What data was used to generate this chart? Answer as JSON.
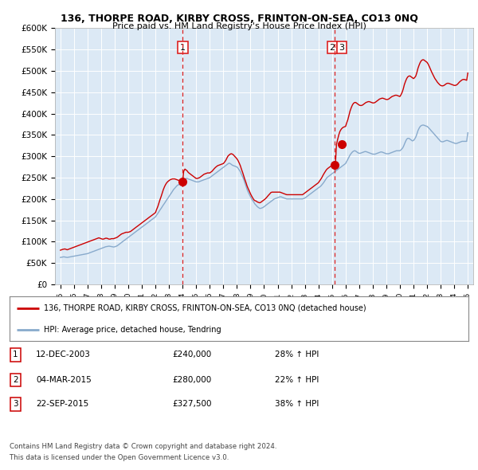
{
  "title1": "136, THORPE ROAD, KIRBY CROSS, FRINTON-ON-SEA, CO13 0NQ",
  "title2": "Price paid vs. HM Land Registry's House Price Index (HPI)",
  "legend_line1": "136, THORPE ROAD, KIRBY CROSS, FRINTON-ON-SEA, CO13 0NQ (detached house)",
  "legend_line2": "HPI: Average price, detached house, Tendring",
  "footer1": "Contains HM Land Registry data © Crown copyright and database right 2024.",
  "footer2": "This data is licensed under the Open Government Licence v3.0.",
  "table": [
    {
      "num": "1",
      "date": "12-DEC-2003",
      "price": "£240,000",
      "hpi": "28% ↑ HPI"
    },
    {
      "num": "2",
      "date": "04-MAR-2015",
      "price": "£280,000",
      "hpi": "22% ↑ HPI"
    },
    {
      "num": "3",
      "date": "22-SEP-2015",
      "price": "£327,500",
      "hpi": "38% ↑ HPI"
    }
  ],
  "vline1_x": 2004.0,
  "vline2_x": 2015.17,
  "sale1_x": 2004.0,
  "sale1_y": 240000,
  "sale2_x": 2015.17,
  "sale2_y": 280000,
  "sale3_x": 2015.72,
  "sale3_y": 327500,
  "ylim": [
    0,
    600000
  ],
  "xlim_left": 1994.6,
  "xlim_right": 2025.4,
  "bg_color": "#dce9f5",
  "red_color": "#cc0000",
  "blue_color": "#88aacc",
  "vline_color": "#dd2222",
  "hpi_x": [
    1995.0,
    1995.08,
    1995.17,
    1995.25,
    1995.33,
    1995.42,
    1995.5,
    1995.58,
    1995.67,
    1995.75,
    1995.83,
    1995.92,
    1996.0,
    1996.08,
    1996.17,
    1996.25,
    1996.33,
    1996.42,
    1996.5,
    1996.58,
    1996.67,
    1996.75,
    1996.83,
    1996.92,
    1997.0,
    1997.08,
    1997.17,
    1997.25,
    1997.33,
    1997.42,
    1997.5,
    1997.58,
    1997.67,
    1997.75,
    1997.83,
    1997.92,
    1998.0,
    1998.08,
    1998.17,
    1998.25,
    1998.33,
    1998.42,
    1998.5,
    1998.58,
    1998.67,
    1998.75,
    1998.83,
    1998.92,
    1999.0,
    1999.08,
    1999.17,
    1999.25,
    1999.33,
    1999.42,
    1999.5,
    1999.58,
    1999.67,
    1999.75,
    1999.83,
    1999.92,
    2000.0,
    2000.08,
    2000.17,
    2000.25,
    2000.33,
    2000.42,
    2000.5,
    2000.58,
    2000.67,
    2000.75,
    2000.83,
    2000.92,
    2001.0,
    2001.08,
    2001.17,
    2001.25,
    2001.33,
    2001.42,
    2001.5,
    2001.58,
    2001.67,
    2001.75,
    2001.83,
    2001.92,
    2002.0,
    2002.08,
    2002.17,
    2002.25,
    2002.33,
    2002.42,
    2002.5,
    2002.58,
    2002.67,
    2002.75,
    2002.83,
    2002.92,
    2003.0,
    2003.08,
    2003.17,
    2003.25,
    2003.33,
    2003.42,
    2003.5,
    2003.58,
    2003.67,
    2003.75,
    2003.83,
    2003.92,
    2004.0,
    2004.08,
    2004.17,
    2004.25,
    2004.33,
    2004.42,
    2004.5,
    2004.58,
    2004.67,
    2004.75,
    2004.83,
    2004.92,
    2005.0,
    2005.08,
    2005.17,
    2005.25,
    2005.33,
    2005.42,
    2005.5,
    2005.58,
    2005.67,
    2005.75,
    2005.83,
    2005.92,
    2006.0,
    2006.08,
    2006.17,
    2006.25,
    2006.33,
    2006.42,
    2006.5,
    2006.58,
    2006.67,
    2006.75,
    2006.83,
    2006.92,
    2007.0,
    2007.08,
    2007.17,
    2007.25,
    2007.33,
    2007.42,
    2007.5,
    2007.58,
    2007.67,
    2007.75,
    2007.83,
    2007.92,
    2008.0,
    2008.08,
    2008.17,
    2008.25,
    2008.33,
    2008.42,
    2008.5,
    2008.58,
    2008.67,
    2008.75,
    2008.83,
    2008.92,
    2009.0,
    2009.08,
    2009.17,
    2009.25,
    2009.33,
    2009.42,
    2009.5,
    2009.58,
    2009.67,
    2009.75,
    2009.83,
    2009.92,
    2010.0,
    2010.08,
    2010.17,
    2010.25,
    2010.33,
    2010.42,
    2010.5,
    2010.58,
    2010.67,
    2010.75,
    2010.83,
    2010.92,
    2011.0,
    2011.08,
    2011.17,
    2011.25,
    2011.33,
    2011.42,
    2011.5,
    2011.58,
    2011.67,
    2011.75,
    2011.83,
    2011.92,
    2012.0,
    2012.08,
    2012.17,
    2012.25,
    2012.33,
    2012.42,
    2012.5,
    2012.58,
    2012.67,
    2012.75,
    2012.83,
    2012.92,
    2013.0,
    2013.08,
    2013.17,
    2013.25,
    2013.33,
    2013.42,
    2013.5,
    2013.58,
    2013.67,
    2013.75,
    2013.83,
    2013.92,
    2014.0,
    2014.08,
    2014.17,
    2014.25,
    2014.33,
    2014.42,
    2014.5,
    2014.58,
    2014.67,
    2014.75,
    2014.83,
    2014.92,
    2015.0,
    2015.08,
    2015.17,
    2015.25,
    2015.33,
    2015.42,
    2015.5,
    2015.58,
    2015.67,
    2015.75,
    2015.83,
    2015.92,
    2016.0,
    2016.08,
    2016.17,
    2016.25,
    2016.33,
    2016.42,
    2016.5,
    2016.58,
    2016.67,
    2016.75,
    2016.83,
    2016.92,
    2017.0,
    2017.08,
    2017.17,
    2017.25,
    2017.33,
    2017.42,
    2017.5,
    2017.58,
    2017.67,
    2017.75,
    2017.83,
    2017.92,
    2018.0,
    2018.08,
    2018.17,
    2018.25,
    2018.33,
    2018.42,
    2018.5,
    2018.58,
    2018.67,
    2018.75,
    2018.83,
    2018.92,
    2019.0,
    2019.08,
    2019.17,
    2019.25,
    2019.33,
    2019.42,
    2019.5,
    2019.58,
    2019.67,
    2019.75,
    2019.83,
    2019.92,
    2020.0,
    2020.08,
    2020.17,
    2020.25,
    2020.33,
    2020.42,
    2020.5,
    2020.58,
    2020.67,
    2020.75,
    2020.83,
    2020.92,
    2021.0,
    2021.08,
    2021.17,
    2021.25,
    2021.33,
    2021.42,
    2021.5,
    2021.58,
    2021.67,
    2021.75,
    2021.83,
    2021.92,
    2022.0,
    2022.08,
    2022.17,
    2022.25,
    2022.33,
    2022.42,
    2022.5,
    2022.58,
    2022.67,
    2022.75,
    2022.83,
    2022.92,
    2023.0,
    2023.08,
    2023.17,
    2023.25,
    2023.33,
    2023.42,
    2023.5,
    2023.58,
    2023.67,
    2023.75,
    2023.83,
    2023.92,
    2024.0,
    2024.08,
    2024.17,
    2024.25,
    2024.33,
    2024.42,
    2024.5,
    2024.58,
    2024.67,
    2024.75,
    2024.83,
    2024.92,
    2025.0
  ],
  "hpi_y": [
    63000,
    63500,
    64000,
    64500,
    64000,
    63500,
    63000,
    63500,
    64000,
    64500,
    65000,
    65500,
    66000,
    66500,
    67000,
    67500,
    68000,
    68500,
    69000,
    69500,
    70000,
    70500,
    71000,
    71500,
    72000,
    73000,
    74000,
    75000,
    76000,
    77000,
    78000,
    79000,
    80000,
    81000,
    82000,
    83000,
    84000,
    85000,
    86000,
    87000,
    88000,
    88500,
    89000,
    89500,
    89000,
    88500,
    88000,
    87500,
    88000,
    89000,
    90000,
    92000,
    94000,
    96000,
    98000,
    100000,
    102000,
    104000,
    106000,
    108000,
    110000,
    112000,
    114000,
    116000,
    118000,
    120000,
    122000,
    124000,
    126000,
    128000,
    130000,
    132000,
    134000,
    136000,
    138000,
    140000,
    142000,
    144000,
    146000,
    148000,
    150000,
    152000,
    154000,
    156000,
    158000,
    162000,
    166000,
    170000,
    174000,
    178000,
    182000,
    186000,
    190000,
    194000,
    198000,
    202000,
    206000,
    210000,
    214000,
    218000,
    222000,
    225000,
    228000,
    231000,
    233000,
    234000,
    235000,
    236000,
    238000,
    242000,
    246000,
    248000,
    248000,
    247000,
    246000,
    245000,
    244000,
    243000,
    242000,
    241000,
    240000,
    240000,
    240000,
    241000,
    242000,
    243000,
    244000,
    245000,
    246000,
    247000,
    248000,
    249000,
    250000,
    252000,
    254000,
    256000,
    258000,
    260000,
    262000,
    264000,
    266000,
    268000,
    270000,
    272000,
    274000,
    276000,
    278000,
    280000,
    282000,
    284000,
    283000,
    281000,
    279000,
    278000,
    277000,
    276000,
    275000,
    272000,
    268000,
    264000,
    258000,
    252000,
    246000,
    238000,
    230000,
    222000,
    216000,
    210000,
    205000,
    200000,
    196000,
    192000,
    188000,
    185000,
    182000,
    180000,
    178000,
    178000,
    179000,
    180000,
    182000,
    184000,
    186000,
    188000,
    190000,
    192000,
    194000,
    196000,
    198000,
    200000,
    201000,
    202000,
    203000,
    204000,
    205000,
    205000,
    204000,
    203000,
    202000,
    201000,
    200000,
    200000,
    200000,
    200000,
    200000,
    200000,
    200000,
    200000,
    200000,
    200000,
    200000,
    200000,
    200000,
    200000,
    200000,
    201000,
    202000,
    204000,
    206000,
    208000,
    210000,
    212000,
    214000,
    216000,
    218000,
    220000,
    222000,
    224000,
    226000,
    228000,
    230000,
    233000,
    236000,
    240000,
    244000,
    248000,
    251000,
    253000,
    255000,
    257000,
    259000,
    261000,
    263000,
    265000,
    267000,
    269000,
    271000,
    273000,
    275000,
    277000,
    279000,
    281000,
    283000,
    288000,
    293000,
    298000,
    303000,
    307000,
    310000,
    312000,
    313000,
    312000,
    310000,
    308000,
    307000,
    307000,
    308000,
    309000,
    310000,
    311000,
    311000,
    310000,
    309000,
    308000,
    307000,
    306000,
    305000,
    305000,
    305000,
    306000,
    307000,
    308000,
    309000,
    310000,
    310000,
    309000,
    308000,
    307000,
    306000,
    306000,
    306000,
    307000,
    308000,
    309000,
    310000,
    311000,
    312000,
    313000,
    313000,
    313000,
    313000,
    315000,
    318000,
    322000,
    328000,
    335000,
    340000,
    342000,
    342000,
    340000,
    338000,
    336000,
    337000,
    340000,
    345000,
    352000,
    360000,
    366000,
    370000,
    372000,
    373000,
    373000,
    372000,
    371000,
    370000,
    368000,
    365000,
    362000,
    359000,
    356000,
    353000,
    350000,
    347000,
    344000,
    341000,
    338000,
    335000,
    334000,
    334000,
    335000,
    336000,
    337000,
    337000,
    336000,
    335000,
    334000,
    333000,
    332000,
    331000,
    330000,
    330000,
    331000,
    332000,
    333000,
    334000,
    335000,
    335000,
    335000,
    335000,
    335000,
    355000
  ],
  "red_x": [
    1995.0,
    1995.08,
    1995.17,
    1995.25,
    1995.33,
    1995.42,
    1995.5,
    1995.58,
    1995.67,
    1995.75,
    1995.83,
    1995.92,
    1996.0,
    1996.08,
    1996.17,
    1996.25,
    1996.33,
    1996.42,
    1996.5,
    1996.58,
    1996.67,
    1996.75,
    1996.83,
    1996.92,
    1997.0,
    1997.08,
    1997.17,
    1997.25,
    1997.33,
    1997.42,
    1997.5,
    1997.58,
    1997.67,
    1997.75,
    1997.83,
    1997.92,
    1998.0,
    1998.08,
    1998.17,
    1998.25,
    1998.33,
    1998.42,
    1998.5,
    1998.58,
    1998.67,
    1998.75,
    1998.83,
    1998.92,
    1999.0,
    1999.08,
    1999.17,
    1999.25,
    1999.33,
    1999.42,
    1999.5,
    1999.58,
    1999.67,
    1999.75,
    1999.83,
    1999.92,
    2000.0,
    2000.08,
    2000.17,
    2000.25,
    2000.33,
    2000.42,
    2000.5,
    2000.58,
    2000.67,
    2000.75,
    2000.83,
    2000.92,
    2001.0,
    2001.08,
    2001.17,
    2001.25,
    2001.33,
    2001.42,
    2001.5,
    2001.58,
    2001.67,
    2001.75,
    2001.83,
    2001.92,
    2002.0,
    2002.08,
    2002.17,
    2002.25,
    2002.33,
    2002.42,
    2002.5,
    2002.58,
    2002.67,
    2002.75,
    2002.83,
    2002.92,
    2003.0,
    2003.08,
    2003.17,
    2003.25,
    2003.33,
    2003.42,
    2003.5,
    2003.58,
    2003.67,
    2003.75,
    2003.83,
    2003.92,
    2004.0,
    2004.08,
    2004.17,
    2004.25,
    2004.33,
    2004.42,
    2004.5,
    2004.58,
    2004.67,
    2004.75,
    2004.83,
    2004.92,
    2005.0,
    2005.08,
    2005.17,
    2005.25,
    2005.33,
    2005.42,
    2005.5,
    2005.58,
    2005.67,
    2005.75,
    2005.83,
    2005.92,
    2006.0,
    2006.08,
    2006.17,
    2006.25,
    2006.33,
    2006.42,
    2006.5,
    2006.58,
    2006.67,
    2006.75,
    2006.83,
    2006.92,
    2007.0,
    2007.08,
    2007.17,
    2007.25,
    2007.33,
    2007.42,
    2007.5,
    2007.58,
    2007.67,
    2007.75,
    2007.83,
    2007.92,
    2008.0,
    2008.08,
    2008.17,
    2008.25,
    2008.33,
    2008.42,
    2008.5,
    2008.58,
    2008.67,
    2008.75,
    2008.83,
    2008.92,
    2009.0,
    2009.08,
    2009.17,
    2009.25,
    2009.33,
    2009.42,
    2009.5,
    2009.58,
    2009.67,
    2009.75,
    2009.83,
    2009.92,
    2010.0,
    2010.08,
    2010.17,
    2010.25,
    2010.33,
    2010.42,
    2010.5,
    2010.58,
    2010.67,
    2010.75,
    2010.83,
    2010.92,
    2011.0,
    2011.08,
    2011.17,
    2011.25,
    2011.33,
    2011.42,
    2011.5,
    2011.58,
    2011.67,
    2011.75,
    2011.83,
    2011.92,
    2012.0,
    2012.08,
    2012.17,
    2012.25,
    2012.33,
    2012.42,
    2012.5,
    2012.58,
    2012.67,
    2012.75,
    2012.83,
    2012.92,
    2013.0,
    2013.08,
    2013.17,
    2013.25,
    2013.33,
    2013.42,
    2013.5,
    2013.58,
    2013.67,
    2013.75,
    2013.83,
    2013.92,
    2014.0,
    2014.08,
    2014.17,
    2014.25,
    2014.33,
    2014.42,
    2014.5,
    2014.58,
    2014.67,
    2014.75,
    2014.83,
    2014.92,
    2015.0,
    2015.08,
    2015.17,
    2015.25,
    2015.33,
    2015.42,
    2015.5,
    2015.58,
    2015.67,
    2015.75,
    2015.83,
    2015.92,
    2016.0,
    2016.08,
    2016.17,
    2016.25,
    2016.33,
    2016.42,
    2016.5,
    2016.58,
    2016.67,
    2016.75,
    2016.83,
    2016.92,
    2017.0,
    2017.08,
    2017.17,
    2017.25,
    2017.33,
    2017.42,
    2017.5,
    2017.58,
    2017.67,
    2017.75,
    2017.83,
    2017.92,
    2018.0,
    2018.08,
    2018.17,
    2018.25,
    2018.33,
    2018.42,
    2018.5,
    2018.58,
    2018.67,
    2018.75,
    2018.83,
    2018.92,
    2019.0,
    2019.08,
    2019.17,
    2019.25,
    2019.33,
    2019.42,
    2019.5,
    2019.58,
    2019.67,
    2019.75,
    2019.83,
    2019.92,
    2020.0,
    2020.08,
    2020.17,
    2020.25,
    2020.33,
    2020.42,
    2020.5,
    2020.58,
    2020.67,
    2020.75,
    2020.83,
    2020.92,
    2021.0,
    2021.08,
    2021.17,
    2021.25,
    2021.33,
    2021.42,
    2021.5,
    2021.58,
    2021.67,
    2021.75,
    2021.83,
    2021.92,
    2022.0,
    2022.08,
    2022.17,
    2022.25,
    2022.33,
    2022.42,
    2022.5,
    2022.58,
    2022.67,
    2022.75,
    2022.83,
    2022.92,
    2023.0,
    2023.08,
    2023.17,
    2023.25,
    2023.33,
    2023.42,
    2023.5,
    2023.58,
    2023.67,
    2023.75,
    2023.83,
    2023.92,
    2024.0,
    2024.08,
    2024.17,
    2024.25,
    2024.33,
    2024.42,
    2024.5,
    2024.58,
    2024.67,
    2024.75,
    2024.83,
    2024.92,
    2025.0
  ],
  "red_y": [
    80000,
    81000,
    82000,
    82500,
    83000,
    82000,
    81000,
    82000,
    83000,
    84000,
    85000,
    86000,
    87000,
    88000,
    89000,
    90000,
    91000,
    92000,
    93000,
    94000,
    95000,
    96000,
    97000,
    98000,
    99000,
    100000,
    101000,
    102000,
    103000,
    104000,
    105000,
    106000,
    107000,
    108000,
    109000,
    108000,
    107000,
    106000,
    106000,
    107000,
    108000,
    108000,
    107000,
    106000,
    106000,
    107000,
    107000,
    107000,
    108000,
    109000,
    110000,
    112000,
    114000,
    116000,
    118000,
    119000,
    120000,
    121000,
    122000,
    122000,
    122000,
    123000,
    124000,
    126000,
    128000,
    130000,
    132000,
    134000,
    136000,
    138000,
    140000,
    142000,
    144000,
    146000,
    148000,
    150000,
    152000,
    154000,
    156000,
    158000,
    160000,
    162000,
    164000,
    166000,
    168000,
    175000,
    182000,
    190000,
    198000,
    206000,
    214000,
    222000,
    229000,
    234000,
    238000,
    241000,
    243000,
    245000,
    246000,
    247000,
    247000,
    247000,
    246000,
    245000,
    244000,
    243000,
    242000,
    241000,
    240000,
    265000,
    270000,
    268000,
    266000,
    262000,
    260000,
    258000,
    256000,
    254000,
    252000,
    250000,
    248000,
    248000,
    249000,
    250000,
    252000,
    254000,
    256000,
    258000,
    259000,
    260000,
    261000,
    261000,
    261000,
    263000,
    265000,
    268000,
    271000,
    274000,
    276000,
    278000,
    279000,
    280000,
    281000,
    282000,
    283000,
    286000,
    290000,
    295000,
    300000,
    303000,
    305000,
    306000,
    305000,
    303000,
    300000,
    297000,
    294000,
    290000,
    284000,
    278000,
    270000,
    262000,
    254000,
    246000,
    238000,
    230000,
    224000,
    218000,
    212000,
    207000,
    202000,
    198000,
    196000,
    195000,
    193000,
    192000,
    191000,
    192000,
    194000,
    196000,
    198000,
    200000,
    203000,
    206000,
    209000,
    212000,
    215000,
    216000,
    216000,
    216000,
    216000,
    216000,
    216000,
    216000,
    216000,
    215000,
    214000,
    213000,
    212000,
    211000,
    210000,
    210000,
    210000,
    210000,
    210000,
    210000,
    210000,
    210000,
    210000,
    210000,
    210000,
    210000,
    210000,
    210000,
    210000,
    212000,
    214000,
    216000,
    218000,
    220000,
    222000,
    224000,
    226000,
    228000,
    230000,
    232000,
    234000,
    236000,
    238000,
    242000,
    246000,
    250000,
    255000,
    260000,
    264000,
    268000,
    271000,
    273000,
    275000,
    277000,
    279000,
    280000,
    280000,
    280000,
    327500,
    340000,
    350000,
    358000,
    363000,
    366000,
    368000,
    369000,
    370000,
    378000,
    386000,
    396000,
    406000,
    414000,
    420000,
    424000,
    426000,
    426000,
    424000,
    422000,
    420000,
    419000,
    419000,
    420000,
    422000,
    424000,
    426000,
    427000,
    428000,
    428000,
    427000,
    426000,
    425000,
    425000,
    426000,
    428000,
    430000,
    432000,
    434000,
    435000,
    436000,
    436000,
    435000,
    434000,
    433000,
    433000,
    434000,
    436000,
    438000,
    440000,
    441000,
    442000,
    443000,
    443000,
    442000,
    441000,
    440000,
    444000,
    450000,
    458000,
    468000,
    476000,
    482000,
    486000,
    488000,
    488000,
    486000,
    484000,
    482000,
    484000,
    488000,
    496000,
    506000,
    514000,
    520000,
    524000,
    526000,
    526000,
    524000,
    522000,
    520000,
    516000,
    510000,
    504000,
    498000,
    492000,
    487000,
    482000,
    478000,
    474000,
    471000,
    468000,
    466000,
    465000,
    465000,
    466000,
    468000,
    470000,
    471000,
    471000,
    470000,
    469000,
    468000,
    467000,
    466000,
    466000,
    467000,
    469000,
    472000,
    475000,
    477000,
    479000,
    480000,
    480000,
    479000,
    478000,
    495000
  ]
}
